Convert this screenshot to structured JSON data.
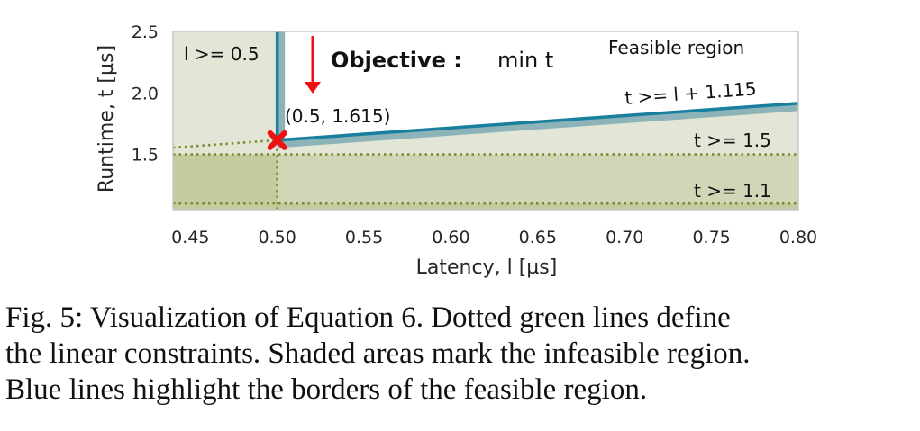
{
  "chart_data": {
    "type": "line",
    "xlabel": "Latency, l [µs]",
    "ylabel": "Runtime, t [µs]",
    "xlim": [
      0.44,
      0.8
    ],
    "ylim": [
      1.05,
      2.5
    ],
    "x_ticks": [
      "0.45",
      "0.50",
      "0.55",
      "0.60",
      "0.65",
      "0.70",
      "0.75",
      "0.80"
    ],
    "y_ticks": [
      "1.5",
      "2.0",
      "2.5"
    ],
    "grid": false,
    "constraints": [
      {
        "label": "l >= 0.5",
        "kind": "vertical",
        "x": 0.5
      },
      {
        "label": "t >= l + 1.115",
        "kind": "sloped",
        "slope": 1,
        "intercept": 1.115
      },
      {
        "label": "t >= 1.5",
        "kind": "horizontal",
        "y": 1.5
      },
      {
        "label": "t >= 1.1",
        "kind": "horizontal",
        "y": 1.1
      }
    ],
    "feasible_region_label": "Feasible region",
    "objective": {
      "label": "Objective :",
      "expression": "min t"
    },
    "optimum": {
      "x": 0.5,
      "y": 1.615,
      "label": "(0.5, 1.615)"
    },
    "colors": {
      "infeasible_fill": "#e2e4d4",
      "dense_fill": "#c4cb9e",
      "constraint_line": "#7d8a32",
      "border_line": "#18809e",
      "border_shade": "#8cb3b8",
      "marker": "#ee1111",
      "arrow": "#ee1111"
    }
  },
  "caption": {
    "lines": [
      "Fig. 5: Visualization of Equation 6. Dotted green lines define",
      "the linear constraints. Shaded areas mark the infeasible region.",
      "Blue lines highlight the borders of the feasible region."
    ]
  }
}
